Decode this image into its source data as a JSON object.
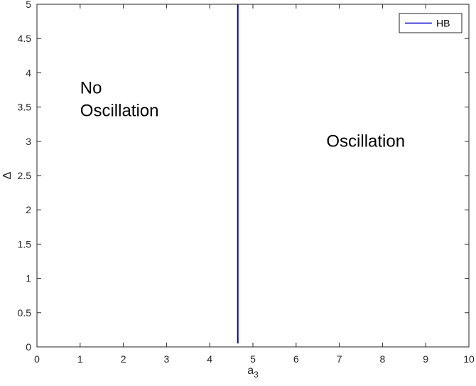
{
  "chart_data": {
    "type": "line",
    "xlabel": {
      "base": "a",
      "sub": "3"
    },
    "ylabel": "Δ",
    "xlim": [
      0,
      10
    ],
    "ylim": [
      0,
      5
    ],
    "xticks": [
      0,
      1,
      2,
      3,
      4,
      5,
      6,
      7,
      8,
      9,
      10
    ],
    "yticks": [
      0,
      0.5,
      1,
      1.5,
      2,
      2.5,
      3,
      3.5,
      4,
      4.5,
      5
    ],
    "xtick_labels": [
      "0",
      "1",
      "2",
      "3",
      "4",
      "5",
      "6",
      "7",
      "8",
      "9",
      "10"
    ],
    "ytick_labels": [
      "0",
      "0.5",
      "1",
      "1.5",
      "2",
      "2.5",
      "3",
      "3.5",
      "4",
      "4.5",
      "5"
    ],
    "grid": false,
    "legend_position": "top-right",
    "series": [
      {
        "name": "HB",
        "color": "#0000cc",
        "x": [
          4.65,
          4.65
        ],
        "y": [
          0.05,
          5
        ]
      }
    ],
    "annotations": [
      {
        "lines": [
          "No",
          "Oscillation"
        ],
        "x": 1.0,
        "y": 3.7
      },
      {
        "lines": [
          "Oscillation"
        ],
        "x": 6.7,
        "y": 2.92
      }
    ]
  }
}
